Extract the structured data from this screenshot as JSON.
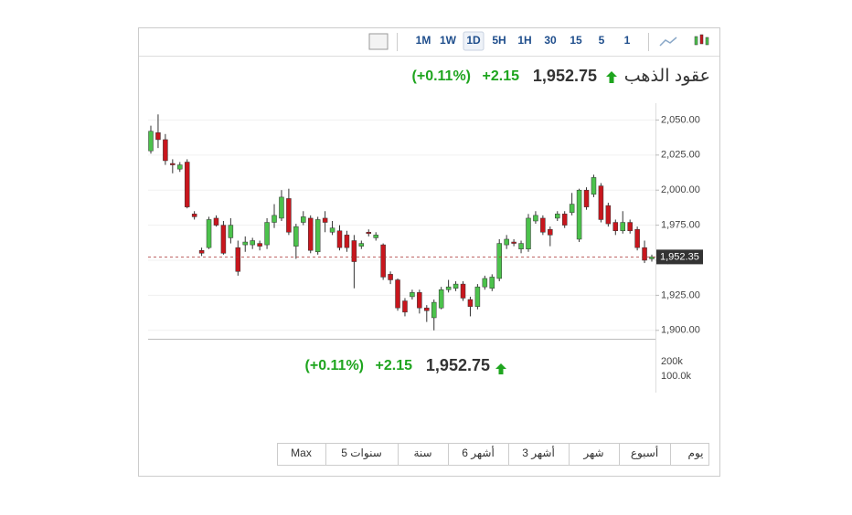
{
  "toolbar": {
    "intervals": [
      "1M",
      "1W",
      "1D",
      "5H",
      "1H",
      "30",
      "15",
      "5",
      "1"
    ],
    "active": "1D"
  },
  "ranges": [
    "Max",
    "5 سنوات",
    "سنة",
    "6 أشهر",
    "3 أشهر",
    "شهر",
    "أسبوع",
    "يوم"
  ],
  "chart_data": {
    "type": "candlestick",
    "title": "عقود الذهب",
    "last_price": "1,952.75",
    "change": "+2.15",
    "change_pct": "(+0.11%)",
    "current_price": {
      "value": 1952.35,
      "label": "1,952.35"
    },
    "open": [
      2028,
      2041,
      2036,
      2019,
      2015,
      2020,
      1983,
      1957,
      1959,
      1980,
      1975,
      1966,
      1959,
      1961,
      1961,
      1962,
      1961,
      1977,
      1980,
      1994,
      1960,
      1977,
      1980,
      1956,
      1980,
      1970,
      1971,
      1968,
      1964,
      1960,
      1970,
      1966,
      1961,
      1940,
      1936,
      1921,
      1924,
      1927,
      1916,
      1909,
      1916,
      1929,
      1930,
      1933,
      1922,
      1917,
      1931,
      1930,
      1937,
      1961,
      1963,
      1958,
      1958,
      1978,
      1980,
      1972,
      1980,
      1983,
      1984,
      1965,
      2000,
      1997,
      2003,
      1989,
      1977,
      1971,
      1977,
      1972,
      1959,
      1951
    ],
    "high": [
      2046,
      2054,
      2040,
      2022,
      2020,
      2022,
      1985,
      1959,
      1981,
      1982,
      1978,
      1980,
      1964,
      1967,
      1966,
      1964,
      1980,
      1990,
      2000,
      2001,
      1976,
      1985,
      1982,
      1981,
      1985,
      1978,
      1975,
      1971,
      1968,
      1964,
      1972,
      1970,
      1962,
      1942,
      1937,
      1923,
      1929,
      1929,
      1918,
      1922,
      1931,
      1936,
      1935,
      1935,
      1924,
      1933,
      1939,
      1940,
      1965,
      1968,
      1965,
      1964,
      1983,
      1985,
      1982,
      1974,
      1985,
      1985,
      1998,
      2001,
      2002,
      2011,
      2005,
      1991,
      1979,
      1985,
      1979,
      1974,
      1964,
      1954
    ],
    "low": [
      2026,
      2030,
      2018,
      2012,
      2013,
      1987,
      1979,
      1953,
      1958,
      1974,
      1954,
      1962,
      1939,
      1956,
      1958,
      1957,
      1958,
      1973,
      1978,
      1968,
      1951,
      1975,
      1955,
      1954,
      1970,
      1968,
      1957,
      1956,
      1930,
      1958,
      1967,
      1964,
      1936,
      1933,
      1914,
      1910,
      1922,
      1912,
      1906,
      1900,
      1915,
      1927,
      1928,
      1921,
      1910,
      1915,
      1929,
      1928,
      1935,
      1958,
      1960,
      1955,
      1956,
      1976,
      1968,
      1960,
      1978,
      1973,
      1982,
      1963,
      1986,
      1995,
      1977,
      1974,
      1968,
      1969,
      1969,
      1957,
      1948,
      1949
    ],
    "close": [
      2042,
      2036,
      2021,
      2018,
      2018,
      1988,
      1981,
      1955,
      1979,
      1975,
      1955,
      1975,
      1942,
      1963,
      1964,
      1960,
      1977,
      1982,
      1995,
      1970,
      1974,
      1981,
      1957,
      1979,
      1977,
      1973,
      1959,
      1959,
      1949,
      1962,
      1969,
      1968,
      1938,
      1936,
      1916,
      1913,
      1927,
      1916,
      1914,
      1920,
      1929,
      1931,
      1933,
      1923,
      1917,
      1931,
      1937,
      1938,
      1962,
      1965,
      1962,
      1962,
      1980,
      1982,
      1970,
      1968,
      1983,
      1975,
      1990,
      2000,
      1988,
      2009,
      1979,
      1976,
      1971,
      1977,
      1971,
      1959,
      1950,
      1952.35
    ],
    "up_color": "#4cc24c",
    "down_color": "#c8161d",
    "ylim": [
      1894,
      2062
    ],
    "yticks": [
      {
        "value": 1900,
        "label": "1,900.00"
      },
      {
        "value": 1925,
        "label": "1,925.00"
      },
      {
        "value": 1950,
        "label": "1,950.00"
      },
      {
        "value": 1975,
        "label": "1,975.00"
      },
      {
        "value": 2000,
        "label": "2,000.00"
      },
      {
        "value": 2025,
        "label": "2,025.00"
      },
      {
        "value": 2050,
        "label": "2,050.00"
      }
    ],
    "y2lim": [
      0,
      300000
    ],
    "y2ticks": [
      {
        "value": 100000,
        "label": "100.0k"
      },
      {
        "value": 200000,
        "label": "200k"
      }
    ],
    "grid": true
  }
}
